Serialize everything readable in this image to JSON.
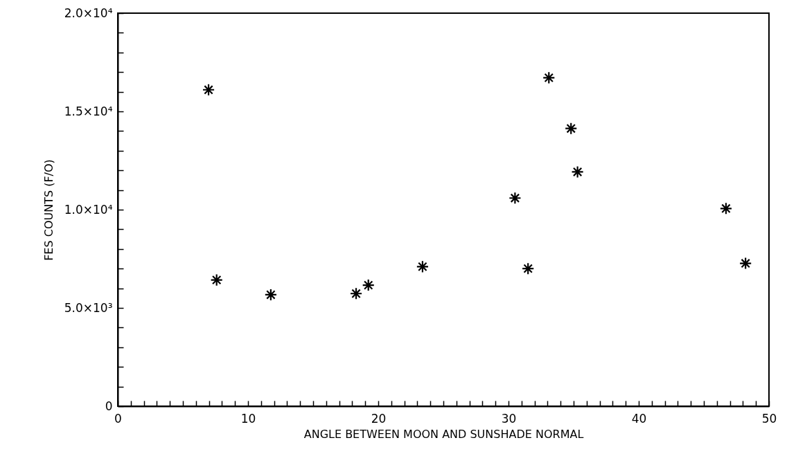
{
  "chart_data": {
    "type": "scatter",
    "xlabel": "ANGLE BETWEEN MOON AND SUNSHADE NORMAL",
    "ylabel": "FES COUNTS (F/O)",
    "x": [
      6.97,
      7.59,
      11.75,
      18.3,
      19.24,
      23.4,
      30.5,
      31.5,
      33.1,
      34.8,
      35.3,
      46.7,
      48.2
    ],
    "series": [
      {
        "color": "#000000",
        "values": [
          16100,
          6420,
          5670,
          5730,
          6160,
          7100,
          10590,
          7000,
          16710,
          14130,
          11920,
          10060,
          7270
        ]
      }
    ],
    "marker": "cross",
    "grid": false,
    "xlim": [
      0,
      50
    ],
    "xticks": [
      0,
      {
        "value": 1,
        "label": null
      },
      {
        "value": 2,
        "label": null
      },
      {
        "value": 3,
        "label": null
      },
      {
        "value": 4,
        "label": null
      },
      {
        "value": 5,
        "label": null
      },
      {
        "value": 6,
        "label": null
      },
      {
        "value": 7,
        "label": null
      },
      {
        "value": 8,
        "label": null
      },
      {
        "value": 9,
        "label": null
      },
      10,
      {
        "value": 11,
        "label": null
      },
      {
        "value": 12,
        "label": null
      },
      {
        "value": 13,
        "label": null
      },
      {
        "value": 14,
        "label": null
      },
      {
        "value": 15,
        "label": null
      },
      {
        "value": 16,
        "label": null
      },
      {
        "value": 17,
        "label": null
      },
      {
        "value": 18,
        "label": null
      },
      {
        "value": 19,
        "label": null
      },
      20,
      {
        "value": 21,
        "label": null
      },
      {
        "value": 22,
        "label": null
      },
      {
        "value": 23,
        "label": null
      },
      {
        "value": 24,
        "label": null
      },
      {
        "value": 25,
        "label": null
      },
      {
        "value": 26,
        "label": null
      },
      {
        "value": 27,
        "label": null
      },
      {
        "value": 28,
        "label": null
      },
      {
        "value": 29,
        "label": null
      },
      30,
      {
        "value": 31,
        "label": null
      },
      {
        "value": 32,
        "label": null
      },
      {
        "value": 33,
        "label": null
      },
      {
        "value": 34,
        "label": null
      },
      {
        "value": 35,
        "label": null
      },
      {
        "value": 36,
        "label": null
      },
      {
        "value": 37,
        "label": null
      },
      {
        "value": 38,
        "label": null
      },
      {
        "value": 39,
        "label": null
      },
      40,
      {
        "value": 41,
        "label": null
      },
      {
        "value": 42,
        "label": null
      },
      {
        "value": 43,
        "label": null
      },
      {
        "value": 44,
        "label": null
      },
      {
        "value": 45,
        "label": null
      },
      {
        "value": 46,
        "label": null
      },
      {
        "value": 47,
        "label": null
      },
      {
        "value": 48,
        "label": null
      },
      {
        "value": 49,
        "label": null
      },
      50
    ],
    "ylim": [
      0,
      20000
    ],
    "yticks": [
      {
        "value": 0,
        "label": "0"
      },
      {
        "value": 1000,
        "label": null
      },
      {
        "value": 2000,
        "label": null
      },
      {
        "value": 3000,
        "label": null
      },
      {
        "value": 4000,
        "label": null
      },
      {
        "value": 5000,
        "label": "5.0×10³"
      },
      {
        "value": 6000,
        "label": null
      },
      {
        "value": 7000,
        "label": null
      },
      {
        "value": 8000,
        "label": null
      },
      {
        "value": 9000,
        "label": null
      },
      {
        "value": 10000,
        "label": "1.0×10⁴"
      },
      {
        "value": 11000,
        "label": null
      },
      {
        "value": 12000,
        "label": null
      },
      {
        "value": 13000,
        "label": null
      },
      {
        "value": 14000,
        "label": null
      },
      {
        "value": 15000,
        "label": "1.5×10⁴"
      },
      {
        "value": 16000,
        "label": null
      },
      {
        "value": 17000,
        "label": null
      },
      {
        "value": 18000,
        "label": null
      },
      {
        "value": 19000,
        "label": null
      },
      {
        "value": 20000,
        "label": "2.0×10⁴"
      }
    ]
  }
}
